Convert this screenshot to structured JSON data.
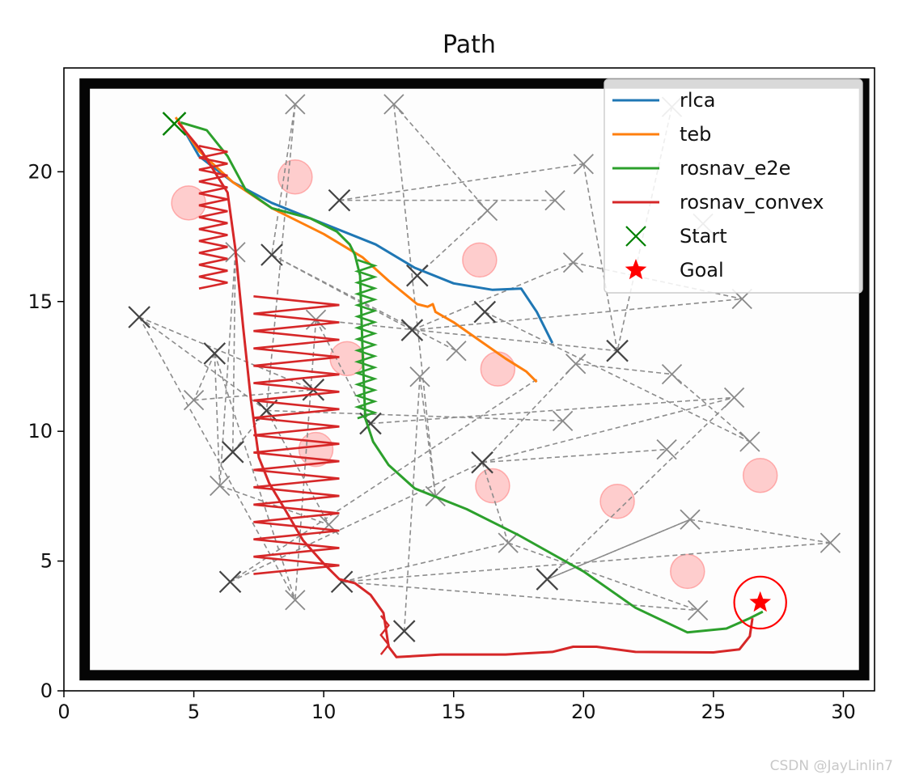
{
  "chart_data": {
    "type": "line",
    "title": "Path",
    "xlim": [
      0,
      31.2
    ],
    "ylim": [
      0,
      24
    ],
    "xticks": [
      0,
      5,
      10,
      15,
      20,
      25,
      30
    ],
    "yticks": [
      0,
      5,
      10,
      15,
      20
    ],
    "legend": {
      "placement": "top-right"
    },
    "series": [
      {
        "name": "rlca",
        "color": "#1f77b4",
        "points": [
          [
            4.4,
            22.0
          ],
          [
            5.2,
            20.6
          ],
          [
            6.5,
            19.6
          ],
          [
            8.0,
            18.8
          ],
          [
            10.0,
            18.0
          ],
          [
            12.0,
            17.2
          ],
          [
            13.5,
            16.3
          ],
          [
            15.0,
            15.7
          ],
          [
            16.5,
            15.45
          ],
          [
            17.6,
            15.5
          ],
          [
            18.2,
            14.6
          ],
          [
            18.8,
            13.4
          ]
        ]
      },
      {
        "name": "teb",
        "color": "#ff7f0e",
        "points": [
          [
            4.3,
            22.1
          ],
          [
            5.2,
            20.8
          ],
          [
            6.5,
            19.6
          ],
          [
            8.0,
            18.6
          ],
          [
            10.0,
            17.6
          ],
          [
            11.5,
            16.7
          ],
          [
            12.5,
            15.8
          ],
          [
            13.6,
            14.9
          ],
          [
            14.0,
            14.8
          ],
          [
            14.2,
            14.9
          ],
          [
            14.3,
            14.6
          ],
          [
            15.0,
            14.2
          ],
          [
            16.0,
            13.5
          ],
          [
            17.0,
            12.8
          ],
          [
            17.8,
            12.3
          ],
          [
            18.2,
            11.9
          ]
        ]
      },
      {
        "name": "rosnav_e2e",
        "color": "#2ca02c",
        "points": [
          [
            4.5,
            21.9
          ],
          [
            5.5,
            21.6
          ],
          [
            6.3,
            20.6
          ],
          [
            7.0,
            19.3
          ],
          [
            8.0,
            18.6
          ],
          [
            9.5,
            18.2
          ],
          [
            10.5,
            17.7
          ],
          [
            11.0,
            17.2
          ],
          [
            11.2,
            16.8
          ],
          [
            11.4,
            16.0
          ],
          [
            11.5,
            13.0
          ],
          [
            11.6,
            10.5
          ],
          [
            11.7,
            10.2
          ],
          [
            11.9,
            9.6
          ],
          [
            12.5,
            8.7
          ],
          [
            13.5,
            7.8
          ],
          [
            15.5,
            7.0
          ],
          [
            17.5,
            6.0
          ],
          [
            20.0,
            4.6
          ],
          [
            22.0,
            3.2
          ],
          [
            24.0,
            2.25
          ],
          [
            25.5,
            2.4
          ],
          [
            26.4,
            2.8
          ],
          [
            26.9,
            3.05
          ]
        ]
      },
      {
        "name": "rosnav_convex",
        "color": "#d62728",
        "points": [
          [
            4.4,
            21.9
          ],
          [
            5.3,
            20.8
          ],
          [
            6.3,
            19.2
          ],
          [
            6.6,
            17.0
          ],
          [
            6.9,
            14.0
          ],
          [
            7.2,
            11.2
          ],
          [
            7.5,
            9.0
          ],
          [
            7.9,
            8.0
          ],
          [
            8.5,
            7.0
          ],
          [
            9.2,
            5.8
          ],
          [
            10.0,
            4.9
          ],
          [
            10.6,
            4.3
          ],
          [
            11.2,
            4.15
          ],
          [
            11.8,
            3.7
          ],
          [
            12.3,
            3.0
          ],
          [
            12.5,
            1.7
          ],
          [
            12.8,
            1.3
          ],
          [
            14.5,
            1.4
          ],
          [
            17.0,
            1.4
          ],
          [
            18.8,
            1.5
          ],
          [
            19.6,
            1.7
          ],
          [
            20.5,
            1.7
          ],
          [
            22.0,
            1.5
          ],
          [
            25.0,
            1.48
          ],
          [
            26.0,
            1.6
          ],
          [
            26.4,
            2.1
          ],
          [
            26.5,
            2.8
          ]
        ]
      },
      {
        "name": "Start",
        "marker": "x",
        "color": "#008000",
        "points": [
          [
            4.25,
            21.85
          ]
        ]
      },
      {
        "name": "Goal",
        "marker": "star",
        "color": "#ff0000",
        "points": [
          [
            26.8,
            3.4
          ]
        ]
      }
    ],
    "obstacles": [
      [
        4.8,
        18.8
      ],
      [
        8.9,
        19.8
      ],
      [
        16.0,
        16.6
      ],
      [
        10.9,
        12.8
      ],
      [
        16.7,
        12.4
      ],
      [
        9.7,
        9.3
      ],
      [
        16.5,
        7.9
      ],
      [
        21.3,
        7.3
      ],
      [
        26.8,
        8.3
      ],
      [
        24.0,
        4.6
      ]
    ],
    "waypoints_dark": [
      [
        10.6,
        18.9
      ],
      [
        13.6,
        16.0
      ],
      [
        8.0,
        16.8
      ],
      [
        2.9,
        14.4
      ],
      [
        5.8,
        13.0
      ],
      [
        13.4,
        13.9
      ],
      [
        16.2,
        14.6
      ],
      [
        21.3,
        13.1
      ],
      [
        7.8,
        10.8
      ],
      [
        9.6,
        11.6
      ],
      [
        11.8,
        10.3
      ],
      [
        6.5,
        9.2
      ],
      [
        16.1,
        8.8
      ],
      [
        6.4,
        4.2
      ],
      [
        10.7,
        4.2
      ],
      [
        18.6,
        4.3
      ],
      [
        13.1,
        2.3
      ]
    ],
    "waypoints_light": [
      [
        8.9,
        22.6
      ],
      [
        12.7,
        22.6
      ],
      [
        23.4,
        22.5
      ],
      [
        18.9,
        18.9
      ],
      [
        16.3,
        18.5
      ],
      [
        20.0,
        20.3
      ],
      [
        24.6,
        18.0
      ],
      [
        6.6,
        16.9
      ],
      [
        9.7,
        14.3
      ],
      [
        19.6,
        16.5
      ],
      [
        26.1,
        15.1
      ],
      [
        15.1,
        13.1
      ],
      [
        19.7,
        12.6
      ],
      [
        13.7,
        12.1
      ],
      [
        23.4,
        12.2
      ],
      [
        5.0,
        11.2
      ],
      [
        19.2,
        10.4
      ],
      [
        25.8,
        11.3
      ],
      [
        26.4,
        9.6
      ],
      [
        23.2,
        9.3
      ],
      [
        6.0,
        7.9
      ],
      [
        14.3,
        7.5
      ],
      [
        10.2,
        6.4
      ],
      [
        17.1,
        5.7
      ],
      [
        24.1,
        6.6
      ],
      [
        29.5,
        5.7
      ],
      [
        8.9,
        3.5
      ],
      [
        24.4,
        3.1
      ]
    ],
    "edges": [
      [
        [
          10.6,
          18.9
        ],
        [
          18.9,
          18.9
        ]
      ],
      [
        [
          10.6,
          18.9
        ],
        [
          20.0,
          20.3
        ]
      ],
      [
        [
          12.7,
          22.6
        ],
        [
          16.3,
          18.5
        ]
      ],
      [
        [
          12.7,
          22.6
        ],
        [
          14.3,
          7.5
        ]
      ],
      [
        [
          16.3,
          18.5
        ],
        [
          13.6,
          16.0
        ]
      ],
      [
        [
          8.9,
          22.6
        ],
        [
          8.0,
          16.8
        ]
      ],
      [
        [
          8.9,
          22.6
        ],
        [
          7.8,
          10.8
        ]
      ],
      [
        [
          20.0,
          20.3
        ],
        [
          21.3,
          13.1
        ]
      ],
      [
        [
          23.4,
          22.5
        ],
        [
          21.3,
          13.1
        ]
      ],
      [
        [
          19.6,
          16.5
        ],
        [
          26.1,
          15.1
        ]
      ],
      [
        [
          13.4,
          13.9
        ],
        [
          26.1,
          15.1
        ]
      ],
      [
        [
          13.4,
          13.9
        ],
        [
          8.0,
          16.8
        ]
      ],
      [
        [
          13.4,
          13.9
        ],
        [
          19.6,
          16.5
        ]
      ],
      [
        [
          8.0,
          16.8
        ],
        [
          15.1,
          13.1
        ]
      ],
      [
        [
          16.2,
          14.6
        ],
        [
          26.4,
          9.6
        ]
      ],
      [
        [
          2.9,
          14.4
        ],
        [
          7.8,
          10.8
        ]
      ],
      [
        [
          2.9,
          14.4
        ],
        [
          9.6,
          11.6
        ]
      ],
      [
        [
          2.9,
          14.4
        ],
        [
          8.9,
          3.5
        ]
      ],
      [
        [
          9.7,
          14.3
        ],
        [
          21.3,
          13.1
        ]
      ],
      [
        [
          9.7,
          14.3
        ],
        [
          8.9,
          3.5
        ]
      ],
      [
        [
          9.7,
          14.3
        ],
        [
          11.8,
          10.3
        ]
      ],
      [
        [
          5.8,
          13.0
        ],
        [
          6.0,
          7.9
        ]
      ],
      [
        [
          5.8,
          13.0
        ],
        [
          5.0,
          11.2
        ]
      ],
      [
        [
          5.0,
          11.2
        ],
        [
          9.6,
          11.6
        ]
      ],
      [
        [
          5.8,
          13.0
        ],
        [
          8.9,
          3.5
        ]
      ],
      [
        [
          7.8,
          10.8
        ],
        [
          19.2,
          10.4
        ]
      ],
      [
        [
          7.8,
          10.8
        ],
        [
          10.2,
          6.4
        ]
      ],
      [
        [
          11.8,
          10.3
        ],
        [
          25.8,
          11.3
        ]
      ],
      [
        [
          13.7,
          12.1
        ],
        [
          13.1,
          2.3
        ]
      ],
      [
        [
          13.7,
          12.1
        ],
        [
          14.3,
          7.5
        ]
      ],
      [
        [
          18.2,
          12.0
        ],
        [
          6.4,
          4.2
        ]
      ],
      [
        [
          19.7,
          12.6
        ],
        [
          23.4,
          12.2
        ]
      ],
      [
        [
          23.4,
          12.2
        ],
        [
          26.4,
          9.6
        ]
      ],
      [
        [
          16.1,
          8.8
        ],
        [
          25.8,
          11.3
        ]
      ],
      [
        [
          16.1,
          8.8
        ],
        [
          19.7,
          12.6
        ]
      ],
      [
        [
          16.1,
          8.8
        ],
        [
          17.1,
          5.7
        ]
      ],
      [
        [
          16.1,
          8.8
        ],
        [
          23.2,
          9.3
        ]
      ],
      [
        [
          6.6,
          16.9
        ],
        [
          6.0,
          7.9
        ]
      ],
      [
        [
          6.6,
          16.9
        ],
        [
          6.5,
          9.2
        ]
      ],
      [
        [
          6.5,
          9.2
        ],
        [
          7.8,
          10.8
        ]
      ],
      [
        [
          6.0,
          7.9
        ],
        [
          10.2,
          6.4
        ]
      ],
      [
        [
          6.4,
          4.2
        ],
        [
          16.1,
          8.8
        ]
      ],
      [
        [
          10.7,
          4.2
        ],
        [
          29.5,
          5.7
        ]
      ],
      [
        [
          10.7,
          4.2
        ],
        [
          24.4,
          3.1
        ]
      ],
      [
        [
          10.7,
          4.2
        ],
        [
          17.1,
          5.7
        ]
      ],
      [
        [
          18.6,
          4.3
        ],
        [
          24.1,
          6.6
        ]
      ],
      [
        [
          18.6,
          4.3
        ],
        [
          25.8,
          11.3
        ]
      ],
      [
        [
          24.1,
          6.6
        ],
        [
          29.5,
          5.7
        ]
      ],
      [
        [
          24.1,
          6.6
        ],
        [
          18.6,
          4.3
        ]
      ],
      [
        [
          17.1,
          5.7
        ],
        [
          24.4,
          3.1
        ]
      ]
    ],
    "goal_circle": {
      "center": [
        26.8,
        3.4
      ],
      "radius": 1.0
    }
  },
  "watermark": "CSDN @JayLinlin7"
}
